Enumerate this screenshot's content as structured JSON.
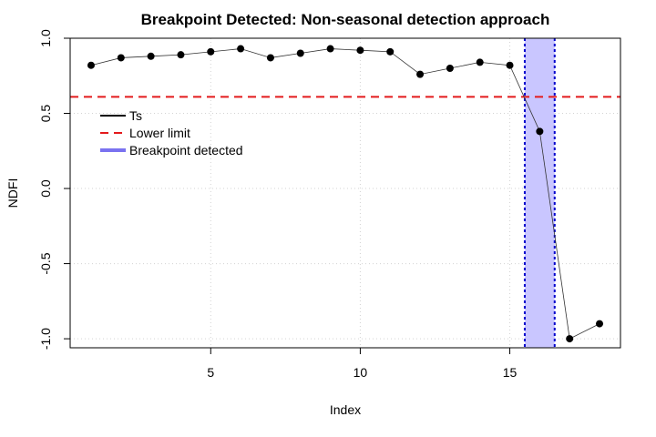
{
  "chart_data": {
    "type": "line",
    "title": "Breakpoint Detected: Non-seasonal detection approach",
    "xlabel": "Index",
    "ylabel": "NDFI",
    "xlim": [
      0.3,
      18.7
    ],
    "ylim": [
      -1.06,
      1.0
    ],
    "x_ticks": [
      5,
      10,
      15
    ],
    "y_ticks": [
      -1.0,
      -0.5,
      0.0,
      0.5,
      1.0
    ],
    "x_tick_labels": [
      "5",
      "10",
      "15"
    ],
    "y_tick_labels": [
      "-1.0",
      "-0.5",
      "0.0",
      "0.5",
      "1.0"
    ],
    "grid": true,
    "series": [
      {
        "name": "Ts",
        "x": [
          1,
          2,
          3,
          4,
          5,
          6,
          7,
          8,
          9,
          10,
          11,
          12,
          13,
          14,
          15,
          16,
          17,
          18
        ],
        "values": [
          0.82,
          0.87,
          0.88,
          0.89,
          0.91,
          0.93,
          0.87,
          0.9,
          0.93,
          0.92,
          0.91,
          0.76,
          0.8,
          0.84,
          0.82,
          0.38,
          -1.0,
          -0.9
        ]
      }
    ],
    "lower_limit": {
      "name": "Lower limit",
      "value": 0.61,
      "color": "#e31a1c"
    },
    "breakpoint": {
      "name": "Breakpoint detected",
      "x_start": 15.5,
      "x_end": 16.5,
      "fill": "#c9c6ff",
      "border": "#0000cc"
    },
    "legend": {
      "placement": "top-left",
      "entries": [
        {
          "label": "Ts",
          "color": "#000000",
          "style": "solid"
        },
        {
          "label": "Lower limit",
          "color": "#e31a1c",
          "style": "dashed"
        },
        {
          "label": "Breakpoint detected",
          "color": "#7a72f0",
          "style": "thick"
        }
      ]
    }
  }
}
